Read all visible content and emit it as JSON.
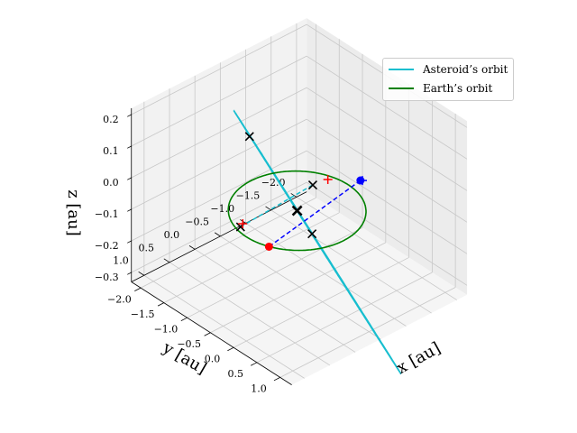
{
  "chart_data": {
    "type": "line",
    "projection": "3d",
    "xlabel": "x [au]",
    "ylabel": "y [au]",
    "zlabel": "z [au]",
    "x_ticks": [
      "−2.0",
      "−1.5",
      "−1.0",
      "−0.5",
      "0.0",
      "0.5",
      "1.0"
    ],
    "y_ticks": [
      "1.0",
      "0.5",
      "0.0",
      "−0.5",
      "−1.0",
      "−1.5",
      "−2.0"
    ],
    "z_ticks": [
      "0.2",
      "0.1",
      "0.0",
      "−0.1",
      "−0.2",
      "−0.3"
    ],
    "xlim": [
      -2.2,
      1.25
    ],
    "ylim": [
      -2.2,
      1.25
    ],
    "zlim": [
      -0.33,
      0.22
    ],
    "grid": true,
    "legend_position": "top-right",
    "series": [
      {
        "name": "Asteroid’s orbit",
        "color": "#17becf",
        "ellipse": {
          "a": 1.5,
          "e": 0.56,
          "inclination_deg": 20,
          "ascending_node_deg": 22,
          "perihelion_arg_deg": 180
        }
      },
      {
        "name": "Earth’s orbit",
        "color": "#008000",
        "ellipse": {
          "a": 1.0,
          "e": 0.0,
          "inclination_deg": 0,
          "ascending_node_deg": 0,
          "perihelion_arg_deg": 0
        }
      }
    ],
    "markers": [
      {
        "label": "sun",
        "shape": "x",
        "color": "#000000",
        "xyz": [
          0,
          0,
          0
        ]
      },
      {
        "label": "ascending node",
        "shape": "x",
        "color": "#000000",
        "xyz": [
          0.573,
          0.231,
          0.0
        ]
      },
      {
        "label": "descending node",
        "shape": "x",
        "color": "#000000",
        "xyz": [
          -1.838,
          -0.743,
          0.0
        ]
      },
      {
        "label": "asteroid",
        "shape": "circle",
        "color": "#0000ff",
        "xyz": [
          0.63,
          -0.67,
          0.1
        ]
      },
      {
        "label": "earth",
        "shape": "circle",
        "color": "#ff0000",
        "xyz": [
          0.4,
          0.92,
          0.0
        ]
      },
      {
        "label": "aphelion",
        "shape": "x",
        "color": "#000000",
        "xyz": [
          -2.18,
          -0.88,
          -0.33
        ]
      },
      {
        "label": "perihelion",
        "shape": "x",
        "color": "#000000",
        "xyz": [
          0.61,
          0.25,
          0.16
        ]
      },
      {
        "label": "cross-red-top",
        "shape": "+",
        "color": "#ff0000",
        "xyz": [
          0.3,
          -0.33,
          0.1
        ]
      },
      {
        "label": "cross-red-bottom",
        "shape": "+",
        "color": "#ff0000",
        "xyz": [
          -2.1,
          -0.85,
          -0.31
        ]
      },
      {
        "label": "cross-blue",
        "shape": "+",
        "color": "#0000ff",
        "xyz": [
          0.65,
          -0.69,
          0.1
        ]
      }
    ],
    "connectors": [
      {
        "from": [
          0.63,
          -0.67,
          0.1
        ],
        "to": [
          0.4,
          0.92,
          0.0
        ],
        "color": "#0000ff",
        "style": "dashed"
      },
      {
        "from": [
          0.61,
          0.25,
          0.16
        ],
        "to": [
          -2.18,
          -0.88,
          -0.33
        ],
        "color": "#17becf",
        "style": "dashed"
      }
    ]
  },
  "legend": {
    "items": [
      {
        "label": "Asteroid’s orbit",
        "color": "#17becf"
      },
      {
        "label": "Earth’s orbit",
        "color": "#008000"
      }
    ]
  }
}
